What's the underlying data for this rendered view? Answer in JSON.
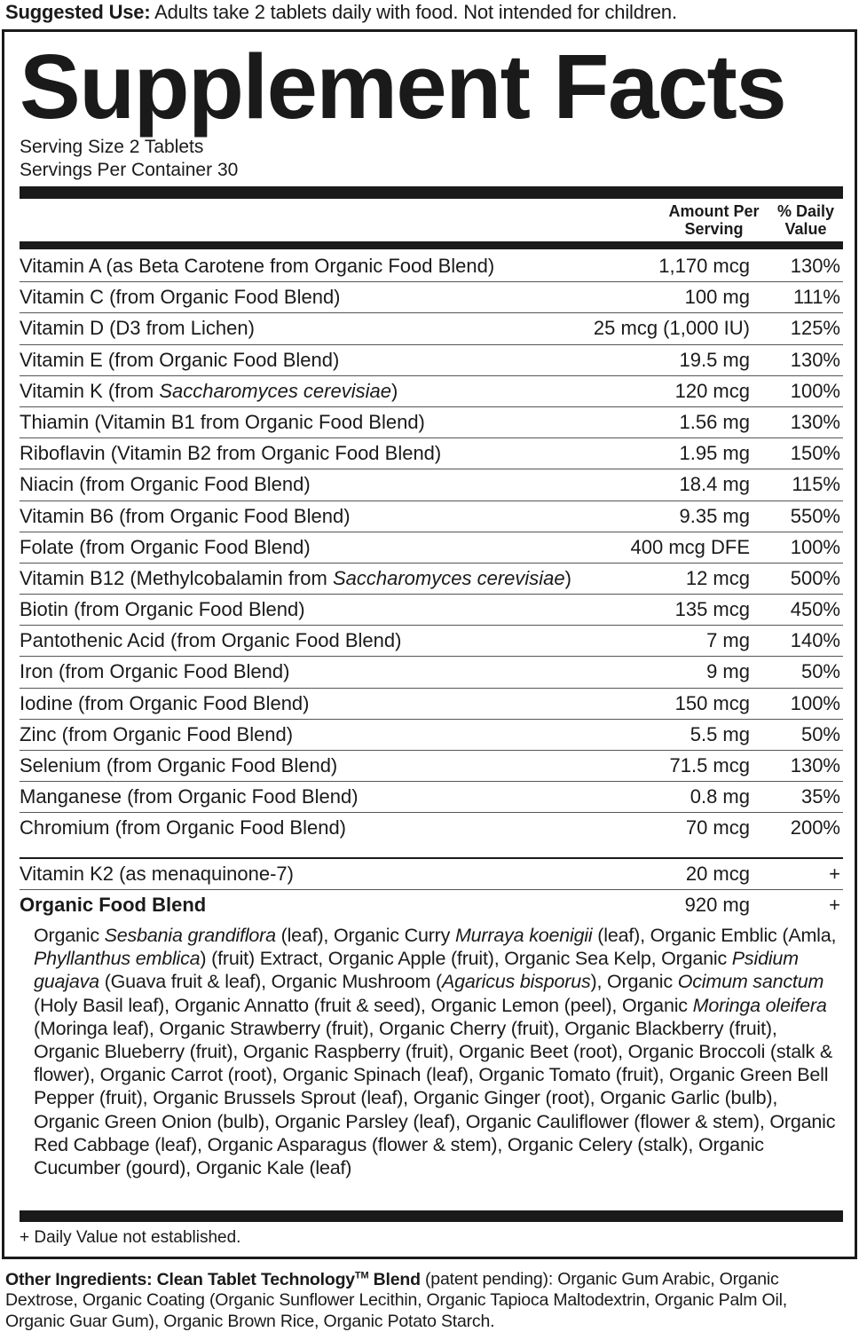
{
  "suggested_use": {
    "label": "Suggested Use:",
    "text": "Adults take 2 tablets daily with food. Not intended for children."
  },
  "panel": {
    "title": "Supplement Facts",
    "serving_size": "Serving Size 2 Tablets",
    "servings_per_container": "Servings Per Container 30",
    "col_amount": "Amount Per Serving",
    "col_dv": "% Daily Value",
    "nutrients": [
      {
        "name": [
          {
            "t": "Vitamin A (as Beta Carotene from Organic Food Blend)"
          }
        ],
        "amount": "1,170 mcg",
        "dv": "130%"
      },
      {
        "name": [
          {
            "t": "Vitamin C (from Organic Food Blend)"
          }
        ],
        "amount": "100 mg",
        "dv": "111%"
      },
      {
        "name": [
          {
            "t": "Vitamin D (D3 from Lichen)"
          }
        ],
        "amount": "25 mcg (1,000 IU)",
        "dv": "125%"
      },
      {
        "name": [
          {
            "t": "Vitamin E (from Organic Food Blend)"
          }
        ],
        "amount": "19.5 mg",
        "dv": "130%"
      },
      {
        "name": [
          {
            "t": "Vitamin K (from "
          },
          {
            "t": "Saccharomyces cerevisiae",
            "i": true
          },
          {
            "t": ")"
          }
        ],
        "amount": "120 mcg",
        "dv": "100%"
      },
      {
        "name": [
          {
            "t": "Thiamin (Vitamin B1 from Organic Food Blend)"
          }
        ],
        "amount": "1.56 mg",
        "dv": "130%"
      },
      {
        "name": [
          {
            "t": "Riboflavin (Vitamin B2 from Organic Food Blend)"
          }
        ],
        "amount": "1.95 mg",
        "dv": "150%"
      },
      {
        "name": [
          {
            "t": "Niacin (from Organic Food Blend)"
          }
        ],
        "amount": "18.4 mg",
        "dv": "115%"
      },
      {
        "name": [
          {
            "t": "Vitamin B6 (from Organic Food Blend)"
          }
        ],
        "amount": "9.35 mg",
        "dv": "550%"
      },
      {
        "name": [
          {
            "t": "Folate (from Organic Food Blend)"
          }
        ],
        "amount": "400 mcg DFE",
        "dv": "100%"
      },
      {
        "name": [
          {
            "t": "Vitamin B12 (Methylcobalamin from "
          },
          {
            "t": "Saccharomyces cerevisiae",
            "i": true
          },
          {
            "t": ")"
          }
        ],
        "amount": "12 mcg",
        "dv": "500%"
      },
      {
        "name": [
          {
            "t": "Biotin (from Organic Food Blend)"
          }
        ],
        "amount": "135 mcg",
        "dv": "450%"
      },
      {
        "name": [
          {
            "t": "Pantothenic Acid (from Organic Food Blend)"
          }
        ],
        "amount": "7 mg",
        "dv": "140%"
      },
      {
        "name": [
          {
            "t": "Iron (from Organic Food Blend)"
          }
        ],
        "amount": "9 mg",
        "dv": "50%"
      },
      {
        "name": [
          {
            "t": "Iodine (from Organic Food Blend)"
          }
        ],
        "amount": "150 mcg",
        "dv": "100%"
      },
      {
        "name": [
          {
            "t": "Zinc (from Organic Food Blend)"
          }
        ],
        "amount": "5.5 mg",
        "dv": "50%"
      },
      {
        "name": [
          {
            "t": "Selenium (from Organic Food Blend)"
          }
        ],
        "amount": "71.5 mcg",
        "dv": "130%"
      },
      {
        "name": [
          {
            "t": "Manganese (from Organic Food Blend)"
          }
        ],
        "amount": "0.8 mg",
        "dv": "35%"
      },
      {
        "name": [
          {
            "t": "Chromium (from Organic Food Blend)"
          }
        ],
        "amount": "70 mcg",
        "dv": "200%"
      }
    ],
    "other_nutrients": [
      {
        "name": [
          {
            "t": "Vitamin K2 (as menaquinone-7)"
          }
        ],
        "amount": "20 mcg",
        "dv": "+"
      },
      {
        "name": [
          {
            "t": "Organic Food Blend"
          }
        ],
        "amount": "920 mg",
        "dv": "+",
        "bold": true
      }
    ],
    "blend": [
      {
        "t": "Organic "
      },
      {
        "t": "Sesbania grandiflora",
        "i": true
      },
      {
        "t": " (leaf), Organic Curry "
      },
      {
        "t": "Murraya koenigii",
        "i": true
      },
      {
        "t": " (leaf), Organic Emblic (Amla, "
      },
      {
        "t": "Phyllanthus emblica",
        "i": true
      },
      {
        "t": ") (fruit) Extract, Organic Apple (fruit), Organic Sea Kelp, Organic "
      },
      {
        "t": "Psidium guajava",
        "i": true
      },
      {
        "t": " (Guava fruit & leaf), Organic Mushroom ("
      },
      {
        "t": "Agaricus bisporus",
        "i": true
      },
      {
        "t": "), Organic "
      },
      {
        "t": "Ocimum sanctum",
        "i": true
      },
      {
        "t": " (Holy Basil leaf), Organic Annatto (fruit & seed), Organic Lemon (peel), Organic "
      },
      {
        "t": "Moringa oleifera",
        "i": true
      },
      {
        "t": " (Moringa leaf), Organic Strawberry (fruit), Organic Cherry (fruit), Organic Blackberry (fruit), Organic Blueberry (fruit), Organic Raspberry (fruit), Organic Beet (root), Organic Broccoli (stalk & flower), Organic Carrot (root), Organic Spinach (leaf), Organic Tomato (fruit), Organic Green Bell Pepper (fruit), Organic Brussels Sprout (leaf), Organic Ginger (root), Organic Garlic (bulb), Organic Green Onion (bulb), Organic Parsley (leaf), Organic Cauliflower (flower & stem), Organic Red Cabbage (leaf), Organic Asparagus (flower & stem), Organic Celery (stalk), Organic Cucumber (gourd), Organic Kale (leaf)"
      }
    ],
    "footnote": "+ Daily Value not established."
  },
  "other_ingredients": {
    "label": "Other Ingredients: Clean Tablet Technology",
    "tm": "TM",
    "label2": " Blend",
    "text": " (patent pending): Organic Gum Arabic, Organic Dextrose, Organic Coating (Organic Sunflower Lecithin, Organic Tapioca Maltodextrin, Organic Palm Oil, Organic Guar Gum), Organic Brown Rice, Organic Potato Starch."
  }
}
